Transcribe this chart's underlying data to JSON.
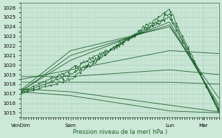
{
  "xlabel": "Pression niveau de la mer( hPa )",
  "ylim": [
    1014.5,
    1026.5
  ],
  "yticks": [
    1015,
    1016,
    1017,
    1018,
    1019,
    1020,
    1021,
    1022,
    1023,
    1024,
    1025,
    1026
  ],
  "xtick_labels": [
    "VenDim",
    "Sam",
    "Lun",
    "Mar"
  ],
  "xtick_pos": [
    0.0,
    0.25,
    0.75,
    0.92
  ],
  "bg_color": "#cce8d8",
  "grid_color": "#aacfba",
  "line_color": "#1a5c28",
  "n_points": 200,
  "lines": [
    {
      "y0": 1017.0,
      "y1": 1018.5,
      "y2": 1025.8,
      "y3": 1015.0,
      "noisy": true,
      "seed": 1
    },
    {
      "y0": 1017.1,
      "y1": 1019.0,
      "y2": 1025.3,
      "y3": 1015.1,
      "noisy": true,
      "seed": 2
    },
    {
      "y0": 1017.2,
      "y1": 1019.5,
      "y2": 1025.0,
      "y3": 1015.3,
      "noisy": true,
      "seed": 3
    },
    {
      "y0": 1017.3,
      "y1": 1020.5,
      "y2": 1024.5,
      "y3": 1015.5,
      "noisy": false,
      "seed": 0
    },
    {
      "y0": 1017.2,
      "y1": 1021.0,
      "y2": 1024.2,
      "y3": 1015.8,
      "noisy": false,
      "seed": 0
    },
    {
      "y0": 1017.4,
      "y1": 1021.5,
      "y2": 1024.0,
      "y3": 1016.5,
      "noisy": false,
      "seed": 0
    },
    {
      "y0": 1018.5,
      "y1": 1019.5,
      "y2": 1021.5,
      "y3": 1021.2,
      "noisy": false,
      "seed": 0
    },
    {
      "y0": 1018.8,
      "y1": 1018.8,
      "y2": 1019.5,
      "y3": 1019.0,
      "noisy": false,
      "seed": 0
    },
    {
      "y0": 1018.2,
      "y1": 1018.2,
      "y2": 1018.2,
      "y3": 1018.0,
      "noisy": false,
      "seed": 0
    },
    {
      "y0": 1017.5,
      "y1": 1017.2,
      "y2": 1015.8,
      "y3": 1015.1,
      "noisy": false,
      "seed": 0
    },
    {
      "y0": 1017.2,
      "y1": 1016.8,
      "y2": 1015.2,
      "y3": 1015.0,
      "noisy": false,
      "seed": 0
    }
  ]
}
